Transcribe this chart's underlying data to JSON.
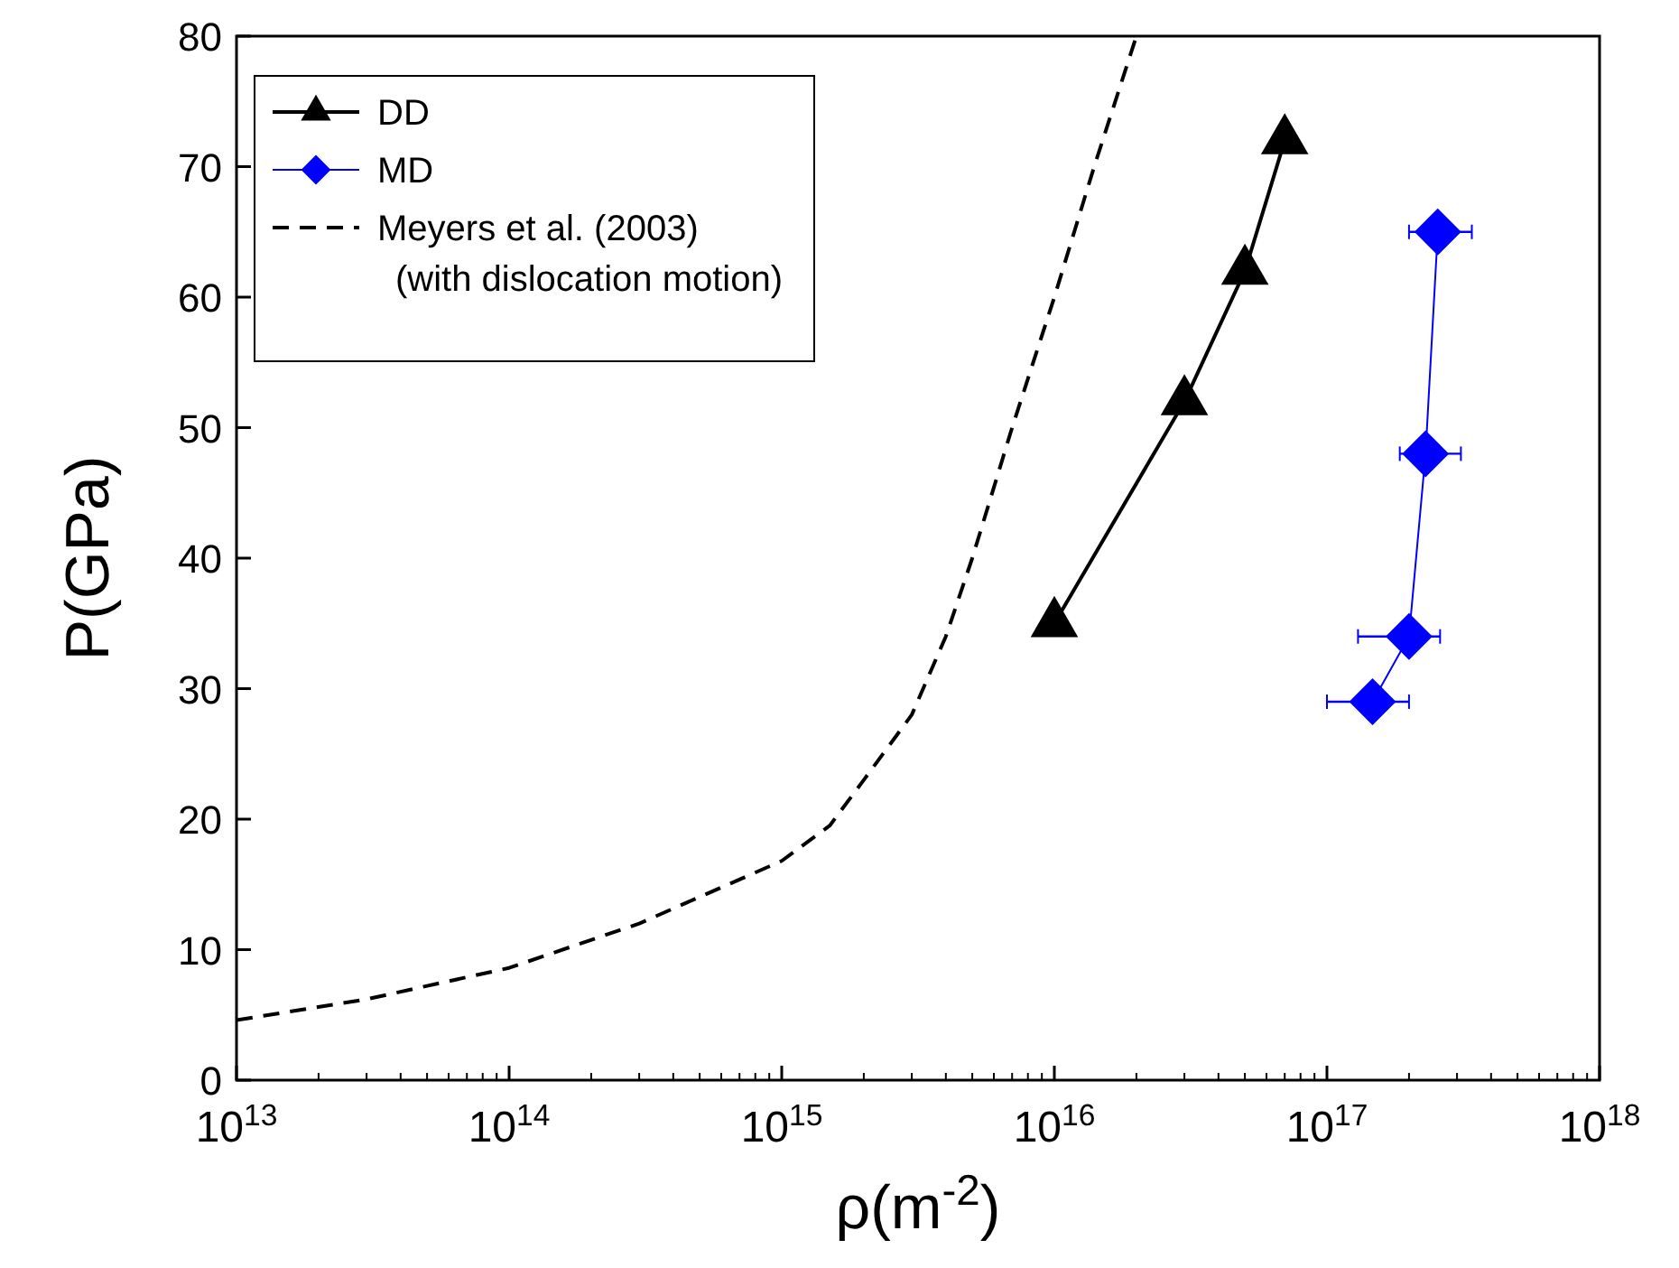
{
  "chart_data": {
    "type": "line",
    "xlabel": "ρ(m$^{-2}$)",
    "ylabel": "P(GPa)",
    "log": "x",
    "xlim": [
      10000000000000.0,
      1e+18
    ],
    "ylim": [
      0,
      80
    ],
    "xticks": [
      {
        "value": 10000000000000.0,
        "label": "10$^{13}$"
      },
      {
        "value": 100000000000000.0,
        "label": "10$^{14}$"
      },
      {
        "value": 1000000000000000.0,
        "label": "10$^{15}$"
      },
      {
        "value": 1e+16,
        "label": "10$^{16}$"
      },
      {
        "value": 1e+17,
        "label": "10$^{17}$"
      },
      {
        "value": 1e+18,
        "label": "10$^{18}$"
      }
    ],
    "yticks": [
      0,
      10,
      20,
      30,
      40,
      50,
      60,
      70,
      80
    ],
    "grid": false,
    "legend": "top left",
    "series": [
      {
        "name": "DD",
        "color": "#000000",
        "marker": "triangle",
        "line_style": "solid",
        "x": [
          1e+16,
          3e+16,
          5e+16,
          7e+16
        ],
        "values": [
          35,
          52,
          62,
          72
        ]
      },
      {
        "name": "MD",
        "color": "#0000ff",
        "marker": "diamond",
        "line_style": "solid",
        "x": [
          1.47e+17,
          2e+17,
          2.3e+17,
          2.55e+17
        ],
        "values": [
          29,
          34,
          48,
          65
        ],
        "xerrors": [
          [
            1e+17,
            2e+17
          ],
          [
            1.3e+17,
            2.6e+17
          ],
          [
            1.85e+17,
            3.1e+17
          ],
          [
            2e+17,
            3.4e+17
          ]
        ]
      },
      {
        "name": "Meyers et al. (2003)\n(with dislocation motion)",
        "color": "#000000",
        "marker": "none",
        "line_style": "dashed",
        "x": [
          10000000000000.0,
          30000000000000.0,
          100000000000000.0,
          300000000000000.0,
          1000000000000000.0,
          1500000000000000.0,
          2000000000000000.0,
          3000000000000000.0,
          4000000000000000.0,
          5000000000000000.0,
          7000000000000000.0,
          1e+16,
          1.4e+16,
          2e+16
        ],
        "values": [
          4.6,
          6.2,
          8.6,
          12,
          16.8,
          19.5,
          23,
          28,
          34,
          40,
          50,
          60,
          70,
          80
        ]
      }
    ]
  }
}
